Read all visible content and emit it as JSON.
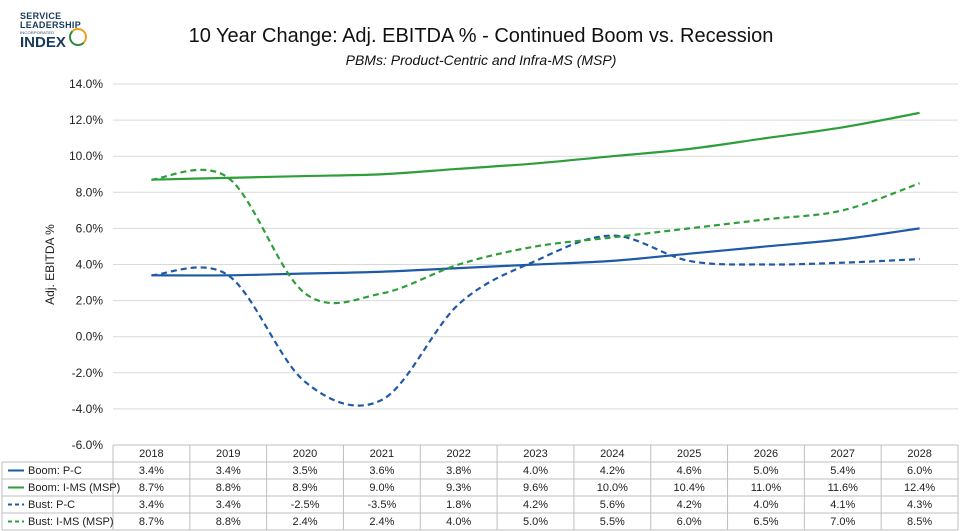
{
  "logo": {
    "line1": "SERVICE",
    "line2": "LEADERSHIP",
    "line3": "INCORPORATED",
    "line4": "INDEX"
  },
  "chart_data": {
    "type": "line",
    "title": "10 Year Change: Adj. EBITDA % - Continued Boom vs. Recession",
    "subtitle": "PBMs: Product-Centric and Infra-MS (MSP)",
    "ylabel": "Adj. EBITDA %",
    "ylim": [
      -6,
      14
    ],
    "yticks": [
      "14.0%",
      "12.0%",
      "10.0%",
      "8.0%",
      "6.0%",
      "4.0%",
      "2.0%",
      "0.0%",
      "-2.0%",
      "-4.0%",
      "-6.0%"
    ],
    "grid": true,
    "legend": "data-table",
    "categories": [
      "2018",
      "2019",
      "2020",
      "2021",
      "2022",
      "2023",
      "2024",
      "2025",
      "2026",
      "2027",
      "2028"
    ],
    "series": [
      {
        "name": "Boom: P-C",
        "color": "#1f5aa6",
        "dashed": false,
        "values": [
          3.4,
          3.4,
          3.5,
          3.6,
          3.8,
          4.0,
          4.2,
          4.6,
          5.0,
          5.4,
          6.0
        ],
        "labels": [
          "3.4%",
          "3.4%",
          "3.5%",
          "3.6%",
          "3.8%",
          "4.0%",
          "4.2%",
          "4.6%",
          "5.0%",
          "5.4%",
          "6.0%"
        ]
      },
      {
        "name": "Boom: I-MS (MSP)",
        "color": "#2e9e3a",
        "dashed": false,
        "values": [
          8.7,
          8.8,
          8.9,
          9.0,
          9.3,
          9.6,
          10.0,
          10.4,
          11.0,
          11.6,
          12.4
        ],
        "labels": [
          "8.7%",
          "8.8%",
          "8.9%",
          "9.0%",
          "9.3%",
          "9.6%",
          "10.0%",
          "10.4%",
          "11.0%",
          "11.6%",
          "12.4%"
        ]
      },
      {
        "name": "Bust: P-C",
        "color": "#1f5aa6",
        "dashed": true,
        "values": [
          3.4,
          3.4,
          -2.5,
          -3.5,
          1.8,
          4.2,
          5.6,
          4.2,
          4.0,
          4.1,
          4.3
        ],
        "labels": [
          "3.4%",
          "3.4%",
          "-2.5%",
          "-3.5%",
          "1.8%",
          "4.2%",
          "5.6%",
          "4.2%",
          "4.0%",
          "4.1%",
          "4.3%"
        ]
      },
      {
        "name": "Bust: I-MS (MSP)",
        "color": "#2e9e3a",
        "dashed": true,
        "values": [
          8.7,
          8.8,
          2.4,
          2.4,
          4.0,
          5.0,
          5.5,
          6.0,
          6.5,
          7.0,
          8.5
        ],
        "labels": [
          "8.7%",
          "8.8%",
          "2.4%",
          "2.4%",
          "4.0%",
          "5.0%",
          "5.5%",
          "6.0%",
          "6.5%",
          "7.0%",
          "8.5%"
        ]
      }
    ]
  }
}
